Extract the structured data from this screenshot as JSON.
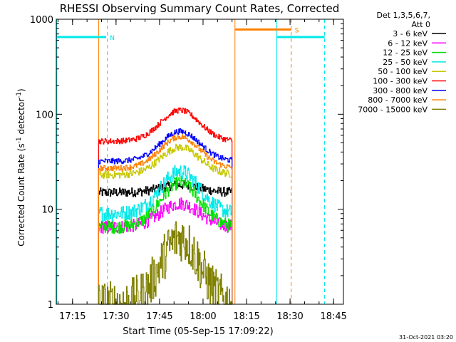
{
  "chart_data": {
    "type": "line",
    "title": "RHESSI Observing Summary Count Rates, Corrected",
    "xlabel": "Start Time (05-Sep-15 17:09:22)",
    "ylabel_main": "Corrected Count Rate (s",
    "ylabel_sup1": "-1",
    "ylabel_mid": " detector",
    "ylabel_sup2": "-1",
    "ylabel_end": ")",
    "yscale": "log",
    "ylim": [
      1,
      1000
    ],
    "y_ticks": [
      1,
      10,
      100,
      1000
    ],
    "y_tick_labels": [
      "1",
      "10",
      "100",
      "1000"
    ],
    "x_ticks_min": [
      5.6,
      20.6,
      35.6,
      50.6,
      65.6,
      80.6,
      95.6
    ],
    "x_tick_labels": [
      "17:15",
      "17:30",
      "17:45",
      "18:00",
      "18:15",
      "18:30",
      "18:45"
    ],
    "xlim_min": [
      0,
      99
    ],
    "data_window_min": [
      14.6,
      60.6
    ],
    "peak_time_min": 42.6,
    "legend_header": [
      "Det 1,3,5,6,7,",
      "Att 0"
    ],
    "series": [
      {
        "name": "3 - 6 keV",
        "color": "#000000",
        "edge": 15,
        "peak": 18,
        "noise": 0.05
      },
      {
        "name": "6 - 12 keV",
        "color": "#ff00ff",
        "edge": 6.5,
        "peak": 11.5,
        "noise": 0.07
      },
      {
        "name": "12 - 25 keV",
        "color": "#00e000",
        "edge": 6.5,
        "peak": 19,
        "noise": 0.07
      },
      {
        "name": "25 - 50 keV",
        "color": "#00e8e8",
        "edge": 9,
        "peak": 25,
        "noise": 0.08
      },
      {
        "name": "50 - 100 keV",
        "color": "#c8c800",
        "edge": 23,
        "peak": 45,
        "noise": 0.04
      },
      {
        "name": "100 - 300 keV",
        "color": "#ff0000",
        "edge": 52,
        "peak": 110,
        "noise": 0.03
      },
      {
        "name": "300 - 800 keV",
        "color": "#0000ff",
        "edge": 32,
        "peak": 66,
        "noise": 0.03
      },
      {
        "name": "800 - 7000 keV",
        "color": "#ff8000",
        "edge": 27,
        "peak": 58,
        "noise": 0.03
      },
      {
        "name": "7000 - 15000 keV",
        "color": "#808000",
        "edge": 1.0,
        "peak": 5,
        "noise": 0.25
      }
    ],
    "flags": [
      {
        "label": "N",
        "color": "#00e8e8",
        "start_min": 0,
        "end_min": 17.2,
        "level": 650
      },
      {
        "label": "S",
        "color": "#ff8000",
        "start_min": 61.6,
        "end_min": 81.0,
        "level": 780
      },
      {
        "label": "",
        "color": "#00e8e8",
        "start_min": 76.0,
        "end_min": 92.5,
        "level": 650
      }
    ],
    "vlines": [
      {
        "min": 0.2,
        "color": "#00e8e8",
        "dash": false
      },
      {
        "min": 14.6,
        "color": "#ff8000",
        "dash": false
      },
      {
        "min": 17.6,
        "color": "#00e8e8",
        "dash": true
      },
      {
        "min": 61.6,
        "color": "#ff8000",
        "dash": false
      },
      {
        "min": 76.0,
        "color": "#00e8e8",
        "dash": false
      },
      {
        "min": 81.0,
        "color": "#ff8000",
        "dash": true
      },
      {
        "min": 92.5,
        "color": "#00e8e8",
        "dash": true
      }
    ],
    "timestamp": "31-Oct-2021 03:20"
  }
}
